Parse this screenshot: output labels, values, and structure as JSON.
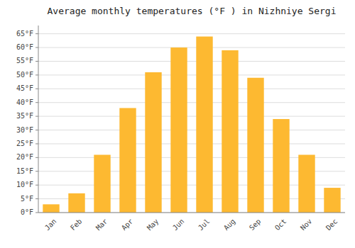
{
  "chart_data": {
    "type": "bar",
    "title": "Average monthly temperatures (°F ) in Nizhniye Sergi",
    "categories": [
      "Jan",
      "Feb",
      "Mar",
      "Apr",
      "May",
      "Jun",
      "Jul",
      "Aug",
      "Sep",
      "Oct",
      "Nov",
      "Dec"
    ],
    "values": [
      3,
      7,
      21,
      38,
      51,
      60,
      64,
      59,
      49,
      34,
      21,
      9
    ],
    "color": "#FDB931",
    "ylim": [
      0,
      68
    ],
    "yticks": [
      {
        "value": 0,
        "label": "0°F"
      },
      {
        "value": 5,
        "label": "5°F"
      },
      {
        "value": 10,
        "label": "10°F"
      },
      {
        "value": 15,
        "label": "15°F"
      },
      {
        "value": 20,
        "label": "20°F"
      },
      {
        "value": 25,
        "label": "25°F"
      },
      {
        "value": 30,
        "label": "30°F"
      },
      {
        "value": 35,
        "label": "35°F"
      },
      {
        "value": 40,
        "label": "40°F"
      },
      {
        "value": 45,
        "label": "45°F"
      },
      {
        "value": 50,
        "label": "50°F"
      },
      {
        "value": 55,
        "label": "55°F"
      },
      {
        "value": 60,
        "label": "60°F"
      },
      {
        "value": 65,
        "label": "65°F"
      }
    ],
    "grid": true
  }
}
